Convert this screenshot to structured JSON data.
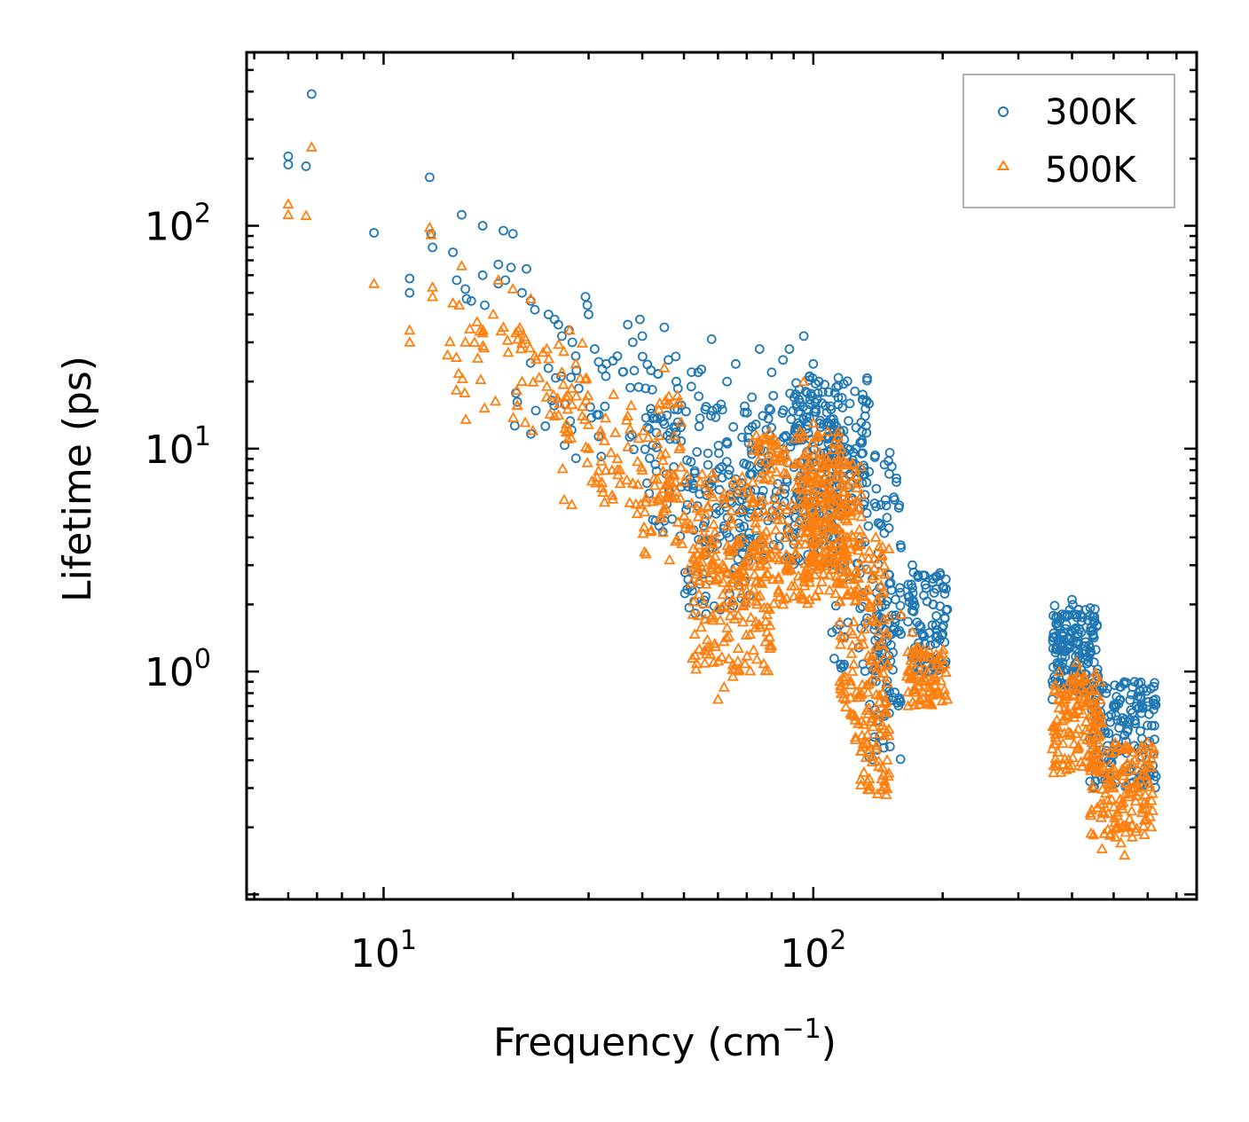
{
  "chart_data": {
    "type": "scatter",
    "title": "",
    "xlabel": "Frequency (cm",
    "xlabel_sup": "−1",
    "xlabel_end": ")",
    "ylabel": "Lifetime (ps)",
    "xscale": "log",
    "yscale": "log",
    "xlim": [
      4.8,
      780
    ],
    "ylim": [
      0.095,
      600
    ],
    "x_ticks": [
      {
        "value": 10,
        "base": "10",
        "exp": "1"
      },
      {
        "value": 100,
        "base": "10",
        "exp": "2"
      }
    ],
    "y_ticks": [
      {
        "value": 1,
        "base": "10",
        "exp": "0"
      },
      {
        "value": 10,
        "base": "10",
        "exp": "1"
      },
      {
        "value": 100,
        "base": "10",
        "exp": "2"
      }
    ],
    "legend_position": "top-right",
    "colors": {
      "s300": "#1f77b4",
      "s500": "#ff7f0e"
    },
    "series": [
      {
        "name": "300K",
        "marker": "circle",
        "color": "#1f77b4",
        "points": [
          [
            6.0,
            205
          ],
          [
            6.0,
            188
          ],
          [
            6.6,
            185
          ],
          [
            6.8,
            390
          ],
          [
            9.5,
            93
          ],
          [
            11.5,
            58
          ],
          [
            11.5,
            50
          ],
          [
            12.8,
            165
          ],
          [
            12.9,
            92
          ],
          [
            13,
            80
          ],
          [
            14.5,
            76
          ],
          [
            15.2,
            112
          ],
          [
            14.8,
            57
          ],
          [
            15.5,
            52
          ],
          [
            15.6,
            47
          ],
          [
            16,
            46
          ],
          [
            17,
            100
          ],
          [
            17,
            60
          ],
          [
            17.2,
            44
          ],
          [
            18.5,
            67
          ],
          [
            18.5,
            55
          ],
          [
            19,
            95
          ],
          [
            19.2,
            57
          ],
          [
            19.8,
            65
          ],
          [
            20,
            92
          ],
          [
            21.5,
            64
          ],
          [
            21,
            50
          ],
          [
            22,
            46
          ],
          [
            22.5,
            42
          ],
          [
            24.2,
            40
          ],
          [
            25,
            38
          ],
          [
            25.5,
            36
          ],
          [
            26,
            32
          ],
          [
            27,
            34
          ],
          [
            27.5,
            30
          ],
          [
            28,
            26
          ],
          [
            29.5,
            48
          ],
          [
            29.8,
            44
          ],
          [
            30,
            40
          ],
          [
            31,
            28
          ],
          [
            33,
            24
          ],
          [
            35,
            26
          ],
          [
            37,
            36
          ],
          [
            38,
            30
          ],
          [
            39.5,
            38
          ],
          [
            40,
            32
          ],
          [
            45,
            35
          ],
          [
            46,
            25
          ],
          [
            48,
            20
          ],
          [
            52,
            19
          ],
          [
            54,
            22
          ],
          [
            56,
            15
          ],
          [
            58,
            31
          ],
          [
            63,
            20
          ],
          [
            66,
            24
          ],
          [
            72,
            17
          ],
          [
            75,
            28
          ],
          [
            80,
            22
          ],
          [
            85,
            25
          ],
          [
            88,
            28
          ],
          [
            95,
            32
          ],
          [
            100,
            24
          ],
          [
            103,
            20
          ],
          [
            110,
            15
          ],
          [
            115,
            12
          ],
          [
            120,
            10
          ],
          [
            125,
            8
          ],
          [
            130,
            7
          ],
          [
            140,
            5.5
          ],
          [
            150,
            4.4
          ],
          [
            160,
            3.6
          ],
          [
            170,
            3.0
          ],
          [
            180,
            2.7
          ],
          [
            190,
            2.0
          ],
          [
            200,
            2.4
          ],
          [
            205,
            1.9
          ],
          [
            380,
            1.3
          ],
          [
            390,
            1.8
          ],
          [
            400,
            2.1
          ],
          [
            410,
            1.8
          ],
          [
            420,
            1.5
          ],
          [
            430,
            1.3
          ],
          [
            440,
            1.2
          ],
          [
            450,
            1.1
          ],
          [
            460,
            0.95
          ],
          [
            480,
            0.8
          ],
          [
            500,
            0.7
          ],
          [
            520,
            0.6
          ],
          [
            540,
            0.55
          ],
          [
            560,
            0.6
          ],
          [
            580,
            0.65
          ],
          [
            600,
            0.7
          ],
          [
            620,
            0.72
          ],
          [
            360,
            0.75
          ],
          [
            370,
            0.9
          ]
        ],
        "clusters": [
          {
            "x": [
              20,
              60
            ],
            "y": [
              9,
              26
            ],
            "n": 70
          },
          {
            "x": [
              40,
              72
            ],
            "y": [
              4,
              16
            ],
            "n": 70
          },
          {
            "x": [
              50,
              72
            ],
            "y": [
              1.8,
              9
            ],
            "n": 90
          },
          {
            "x": [
              68,
              115
            ],
            "y": [
              3,
              18
            ],
            "n": 200
          },
          {
            "x": [
              90,
              135
            ],
            "y": [
              5,
              22
            ],
            "n": 160
          },
          {
            "x": [
              110,
              160
            ],
            "y": [
              1.0,
              10
            ],
            "n": 120
          },
          {
            "x": [
              135,
              160
            ],
            "y": [
              0.4,
              2.5
            ],
            "n": 60
          },
          {
            "x": [
              165,
              205
            ],
            "y": [
              1.0,
              2.8
            ],
            "n": 90
          },
          {
            "x": [
              360,
              460
            ],
            "y": [
              0.8,
              2.0
            ],
            "n": 150
          },
          {
            "x": [
              440,
              630
            ],
            "y": [
              0.3,
              0.9
            ],
            "n": 160
          }
        ]
      },
      {
        "name": "500K",
        "marker": "triangle",
        "color": "#ff7f0e",
        "points": [
          [
            6.0,
            125
          ],
          [
            6.0,
            112
          ],
          [
            6.6,
            111
          ],
          [
            6.8,
            225
          ],
          [
            9.5,
            55
          ],
          [
            11.5,
            34
          ],
          [
            11.5,
            30
          ],
          [
            12.8,
            98
          ],
          [
            12.9,
            91
          ],
          [
            13,
            53
          ],
          [
            13,
            48
          ],
          [
            14.5,
            45
          ],
          [
            15.2,
            66
          ],
          [
            15,
            44
          ],
          [
            15.5,
            30
          ],
          [
            16.5,
            37
          ],
          [
            17,
            33
          ],
          [
            18.5,
            57
          ],
          [
            18,
            40
          ],
          [
            19,
            35
          ],
          [
            19.5,
            27
          ],
          [
            20,
            52
          ],
          [
            21,
            20
          ],
          [
            22,
            47
          ],
          [
            22.5,
            26
          ],
          [
            23.5,
            27
          ],
          [
            24,
            19
          ],
          [
            25,
            14
          ],
          [
            26,
            22
          ],
          [
            27,
            12
          ],
          [
            28,
            24
          ],
          [
            29,
            14
          ],
          [
            30,
            10
          ],
          [
            32,
            12
          ],
          [
            34,
            8
          ],
          [
            35,
            9
          ],
          [
            37,
            14
          ],
          [
            38,
            7
          ],
          [
            40,
            8
          ],
          [
            42,
            4.3
          ],
          [
            45,
            23
          ],
          [
            46,
            6
          ],
          [
            48,
            6
          ],
          [
            50,
            5
          ],
          [
            55,
            4
          ],
          [
            58,
            3
          ],
          [
            60,
            2.6
          ],
          [
            65,
            2.5
          ],
          [
            70,
            2.3
          ],
          [
            74,
            2.0
          ],
          [
            78,
            1.8
          ],
          [
            80,
            1.3
          ],
          [
            85,
            2.0
          ],
          [
            60,
            0.75
          ],
          [
            62,
            0.85
          ],
          [
            65,
            0.95
          ],
          [
            95,
            20
          ],
          [
            100,
            13
          ],
          [
            105,
            9
          ],
          [
            110,
            6
          ],
          [
            120,
            4
          ],
          [
            130,
            2.2
          ],
          [
            140,
            1.3
          ],
          [
            145,
            0.8
          ],
          [
            150,
            0.55
          ],
          [
            140,
            0.45
          ],
          [
            145,
            0.37
          ],
          [
            150,
            0.35
          ],
          [
            135,
            0.33
          ],
          [
            148,
            0.28
          ],
          [
            160,
            1.8
          ],
          [
            170,
            1.5
          ],
          [
            180,
            0.9
          ],
          [
            190,
            0.8
          ],
          [
            200,
            1.2
          ],
          [
            205,
            0.75
          ],
          [
            360,
            0.45
          ],
          [
            380,
            0.6
          ],
          [
            400,
            0.85
          ],
          [
            410,
            1.1
          ],
          [
            420,
            0.9
          ],
          [
            430,
            0.8
          ],
          [
            450,
            0.55
          ],
          [
            470,
            0.45
          ],
          [
            490,
            0.35
          ],
          [
            500,
            0.3
          ],
          [
            520,
            0.25
          ],
          [
            540,
            0.2
          ],
          [
            560,
            0.4
          ],
          [
            580,
            0.45
          ],
          [
            600,
            0.48
          ],
          [
            620,
            0.45
          ],
          [
            470,
            0.16
          ],
          [
            520,
            0.17
          ],
          [
            530,
            0.15
          ]
        ],
        "clusters": [
          {
            "x": [
              14,
              30
            ],
            "y": [
              12,
              35
            ],
            "n": 60
          },
          {
            "x": [
              25,
              50
            ],
            "y": [
              5,
              18
            ],
            "n": 80
          },
          {
            "x": [
              40,
              70
            ],
            "y": [
              2.5,
              8
            ],
            "n": 100
          },
          {
            "x": [
              52,
              80
            ],
            "y": [
              1.0,
              4
            ],
            "n": 140
          },
          {
            "x": [
              70,
              120
            ],
            "y": [
              2,
              12
            ],
            "n": 260
          },
          {
            "x": [
              95,
              130
            ],
            "y": [
              2.5,
              9
            ],
            "n": 160
          },
          {
            "x": [
              115,
              150
            ],
            "y": [
              0.6,
              4
            ],
            "n": 120
          },
          {
            "x": [
              125,
              150
            ],
            "y": [
              0.28,
              0.9
            ],
            "n": 60
          },
          {
            "x": [
              165,
              205
            ],
            "y": [
              0.7,
              1.3
            ],
            "n": 80
          },
          {
            "x": [
              360,
              470
            ],
            "y": [
              0.35,
              1.0
            ],
            "n": 140
          },
          {
            "x": [
              440,
              620
            ],
            "y": [
              0.18,
              0.48
            ],
            "n": 140
          }
        ]
      }
    ]
  }
}
